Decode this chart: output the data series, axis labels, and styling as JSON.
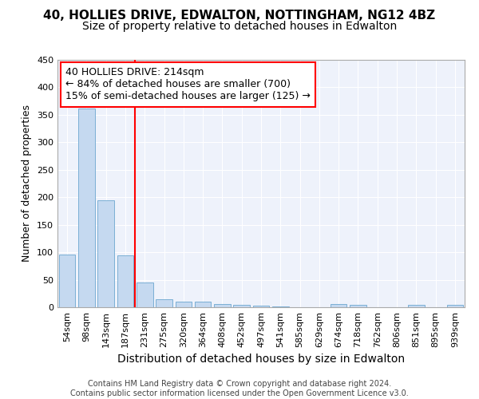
{
  "title1": "40, HOLLIES DRIVE, EDWALTON, NOTTINGHAM, NG12 4BZ",
  "title2": "Size of property relative to detached houses in Edwalton",
  "xlabel": "Distribution of detached houses by size in Edwalton",
  "ylabel": "Number of detached properties",
  "categories": [
    "54sqm",
    "98sqm",
    "143sqm",
    "187sqm",
    "231sqm",
    "275sqm",
    "320sqm",
    "364sqm",
    "408sqm",
    "452sqm",
    "497sqm",
    "541sqm",
    "585sqm",
    "629sqm",
    "674sqm",
    "718sqm",
    "762sqm",
    "806sqm",
    "851sqm",
    "895sqm",
    "939sqm"
  ],
  "values": [
    96,
    362,
    194,
    95,
    45,
    14,
    10,
    10,
    6,
    5,
    3,
    2,
    0,
    0,
    6,
    5,
    0,
    0,
    4,
    0,
    4
  ],
  "bar_color": "#c5d9f0",
  "bar_edge_color": "#7bafd4",
  "annotation_text": "40 HOLLIES DRIVE: 214sqm\n← 84% of detached houses are smaller (700)\n15% of semi-detached houses are larger (125) →",
  "annotation_box_color": "white",
  "annotation_box_edgecolor": "red",
  "vline_color": "red",
  "ylim": [
    0,
    450
  ],
  "yticks": [
    0,
    50,
    100,
    150,
    200,
    250,
    300,
    350,
    400,
    450
  ],
  "footer_text": "Contains HM Land Registry data © Crown copyright and database right 2024.\nContains public sector information licensed under the Open Government Licence v3.0.",
  "bg_color": "#eef2fb",
  "grid_color": "#ffffff",
  "title1_fontsize": 11,
  "title2_fontsize": 10,
  "xlabel_fontsize": 10,
  "ylabel_fontsize": 9,
  "tick_fontsize": 8,
  "annotation_fontsize": 9,
  "footer_fontsize": 7
}
